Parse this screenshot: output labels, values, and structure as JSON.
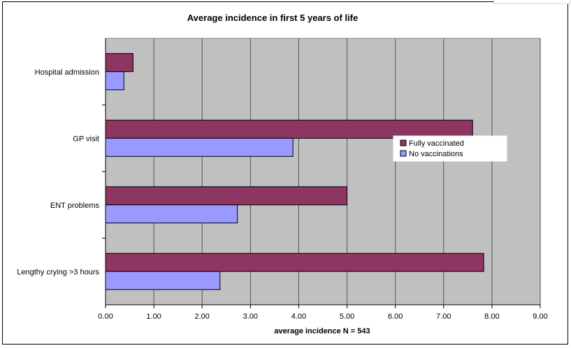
{
  "chart_data": {
    "type": "bar",
    "orientation": "horizontal",
    "title": "Average incidence in first 5 years of life",
    "xlabel": "average incidence N = 543",
    "ylabel": "",
    "xlim": [
      0,
      9
    ],
    "x_ticks": [
      "0.00",
      "1.00",
      "2.00",
      "3.00",
      "4.00",
      "5.00",
      "6.00",
      "7.00",
      "8.00",
      "9.00"
    ],
    "categories": [
      "Hospital admission",
      "GP visit",
      "ENT problems",
      "Lengthy crying >3 hours"
    ],
    "series": [
      {
        "name": "Fully vaccinated",
        "color": "#8E3662",
        "values": [
          0.57,
          7.6,
          5.0,
          7.83
        ]
      },
      {
        "name": "No vaccinations",
        "color": "#9999FF",
        "values": [
          0.38,
          3.88,
          2.73,
          2.37
        ]
      }
    ],
    "plot_background": "#C0C0C0",
    "grid": "vertical",
    "legend_position": "right"
  }
}
